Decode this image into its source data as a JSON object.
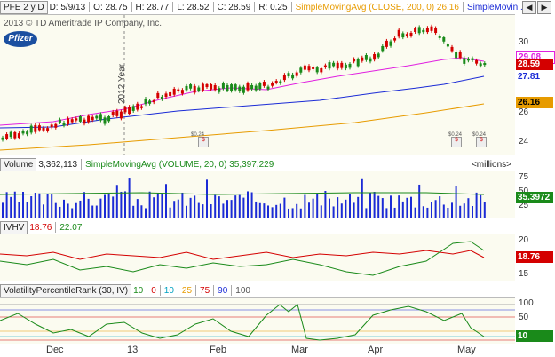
{
  "header": {
    "symbol": "PFE",
    "period": "2 y D",
    "date_lbl": "D: 5/9/13",
    "open_lbl": "O: 28.75",
    "high_lbl": "H: 28.77",
    "low_lbl": "L: 28.52",
    "close_lbl": "C: 28.59",
    "range_lbl": "R: 0.25",
    "sma1_label": "SimpleMovingAvg (CLOSE, 200, 0)",
    "sma1_value": "26.16",
    "sma2_label": "SimpleMovin..."
  },
  "copyright": "2013 © TD Ameritrade IP Company, Inc.",
  "logo_text": "Pfizer",
  "year_marker": "2012 Year",
  "price_axis": {
    "ticks": [
      "30",
      "28",
      "26",
      "24"
    ]
  },
  "price_labels": {
    "magenta": "29.08",
    "last": "28.59",
    "blue": "27.81",
    "orange": "26.16"
  },
  "volume_panel": {
    "title": "Volume",
    "value": "3,362,113",
    "sma_label": "SimpleMovingAvg (VOLUME, 20, 0)",
    "sma_value": "35,397,229",
    "units": "<millions>",
    "ticks": [
      "75",
      "50",
      "25"
    ],
    "current": "35.3972"
  },
  "ivhv_panel": {
    "title": "IVHV",
    "iv": "18.76",
    "hv": "22.07",
    "ticks": [
      "20",
      "15"
    ],
    "current": "18.76"
  },
  "vpr_panel": {
    "title": "VolatilityPercentileRank (30, IV)",
    "levels": [
      "10",
      "0",
      "10",
      "25",
      "75",
      "90",
      "100"
    ],
    "ticks": [
      "100",
      "50"
    ],
    "current": "10"
  },
  "x_axis": [
    "Dec",
    "13",
    "Feb",
    "Mar",
    "Apr",
    "May"
  ],
  "events": [
    "$0.24",
    "$0.24",
    "$0.24"
  ],
  "colors": {
    "sma200": "#e79b00",
    "sma50": "#1b2bd6",
    "sma20": "#e020e0",
    "up": "#1a8a1a",
    "down": "#d40000"
  }
}
